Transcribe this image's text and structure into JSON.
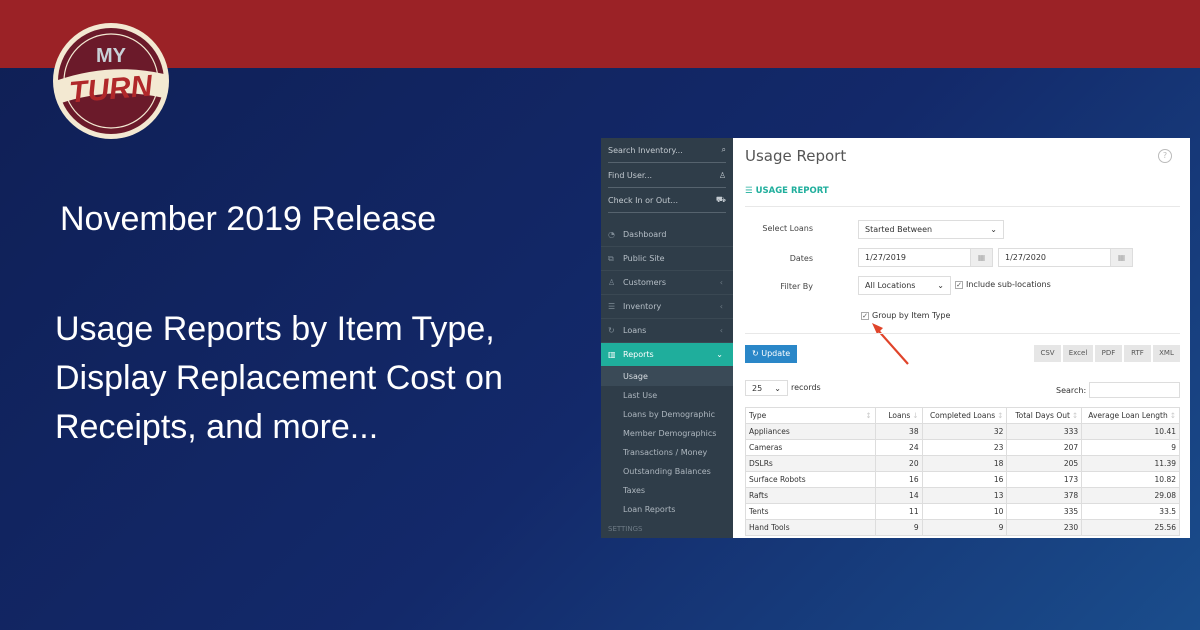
{
  "brand": {
    "logo_top": "MY",
    "logo_main": "TURN",
    "colors": {
      "red": "#9b2226",
      "navy": "#13296a",
      "teal": "#1fae9c",
      "blue": "#2a87c8"
    }
  },
  "headline": "November 2019 Release",
  "subheadline": [
    "Usage Reports by Item Type,",
    "Display Replacement Cost on",
    "Receipts, and more..."
  ],
  "sidebar": {
    "inputs": [
      {
        "placeholder": "Search Inventory...",
        "icon": "search-icon"
      },
      {
        "placeholder": "Find User...",
        "icon": "user-icon"
      },
      {
        "placeholder": "Check In or Out...",
        "icon": "cart-icon"
      }
    ],
    "nav": [
      {
        "label": "Dashboard",
        "icon": "dashboard-icon"
      },
      {
        "label": "Public Site",
        "icon": "external-icon"
      },
      {
        "label": "Customers",
        "icon": "users-icon",
        "chevron": "‹"
      },
      {
        "label": "Inventory",
        "icon": "list-icon",
        "chevron": "‹"
      },
      {
        "label": "Loans",
        "icon": "refresh-icon",
        "chevron": "‹"
      },
      {
        "label": "Reports",
        "icon": "chart-icon",
        "chevron": "⌄",
        "active": true
      }
    ],
    "sub": [
      "Usage",
      "Last Use",
      "Loans by Demographic",
      "Member Demographics",
      "Transactions / Money",
      "Outstanding Balances",
      "Taxes",
      "Loan Reports"
    ],
    "section": "SETTINGS"
  },
  "main": {
    "title": "Usage Report",
    "help": "?",
    "section": "USAGE REPORT",
    "select_loans": {
      "label": "Select Loans",
      "value": "Started Between"
    },
    "dates": {
      "label": "Dates",
      "from": "1/27/2019",
      "to": "1/27/2020"
    },
    "filter": {
      "label": "Filter By",
      "value": "All Locations",
      "sub_locations": "Include sub-locations"
    },
    "group_by": "Group by Item Type",
    "update": "Update",
    "exports": [
      "CSV",
      "Excel",
      "PDF",
      "RTF",
      "XML"
    ],
    "records": {
      "value": "25",
      "label": "records"
    },
    "search_label": "Search:",
    "table": {
      "headers": [
        "Type",
        "Loans",
        "Completed Loans",
        "Total Days Out",
        "Average Loan Length"
      ],
      "rows": [
        [
          "Appliances",
          "38",
          "32",
          "333",
          "10.41"
        ],
        [
          "Cameras",
          "24",
          "23",
          "207",
          "9"
        ],
        [
          "DSLRs",
          "20",
          "18",
          "205",
          "11.39"
        ],
        [
          "Surface Robots",
          "16",
          "16",
          "173",
          "10.82"
        ],
        [
          "Rafts",
          "14",
          "13",
          "378",
          "29.08"
        ],
        [
          "Tents",
          "11",
          "10",
          "335",
          "33.5"
        ],
        [
          "Hand Tools",
          "9",
          "9",
          "230",
          "25.56"
        ]
      ]
    }
  }
}
